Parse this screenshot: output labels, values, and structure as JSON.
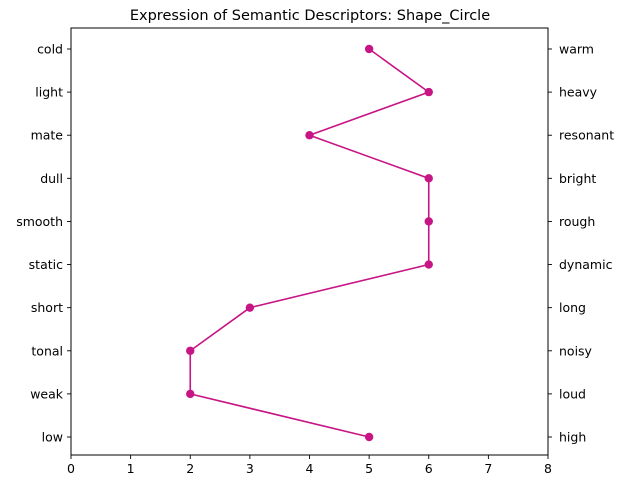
{
  "chart_data": {
    "type": "line",
    "title": "Expression of Semantic Descriptors: Shape_Circle",
    "xlabel": "",
    "ylabel": "",
    "xlim": [
      0,
      8
    ],
    "x_ticks": [
      "0",
      "1",
      "2",
      "3",
      "4",
      "5",
      "6",
      "7",
      "8"
    ],
    "left_labels": [
      "cold",
      "light",
      "mate",
      "dull",
      "smooth",
      "static",
      "short",
      "tonal",
      "weak",
      "low"
    ],
    "right_labels": [
      "warm",
      "heavy",
      "resonant",
      "bright",
      "rough",
      "dynamic",
      "long",
      "noisy",
      "loud",
      "high"
    ],
    "series": [
      {
        "values": [
          5,
          6,
          4,
          6,
          6,
          6,
          3,
          2,
          2,
          5
        ]
      }
    ],
    "line_color": "#c71585",
    "grid": false,
    "legend": "none"
  }
}
